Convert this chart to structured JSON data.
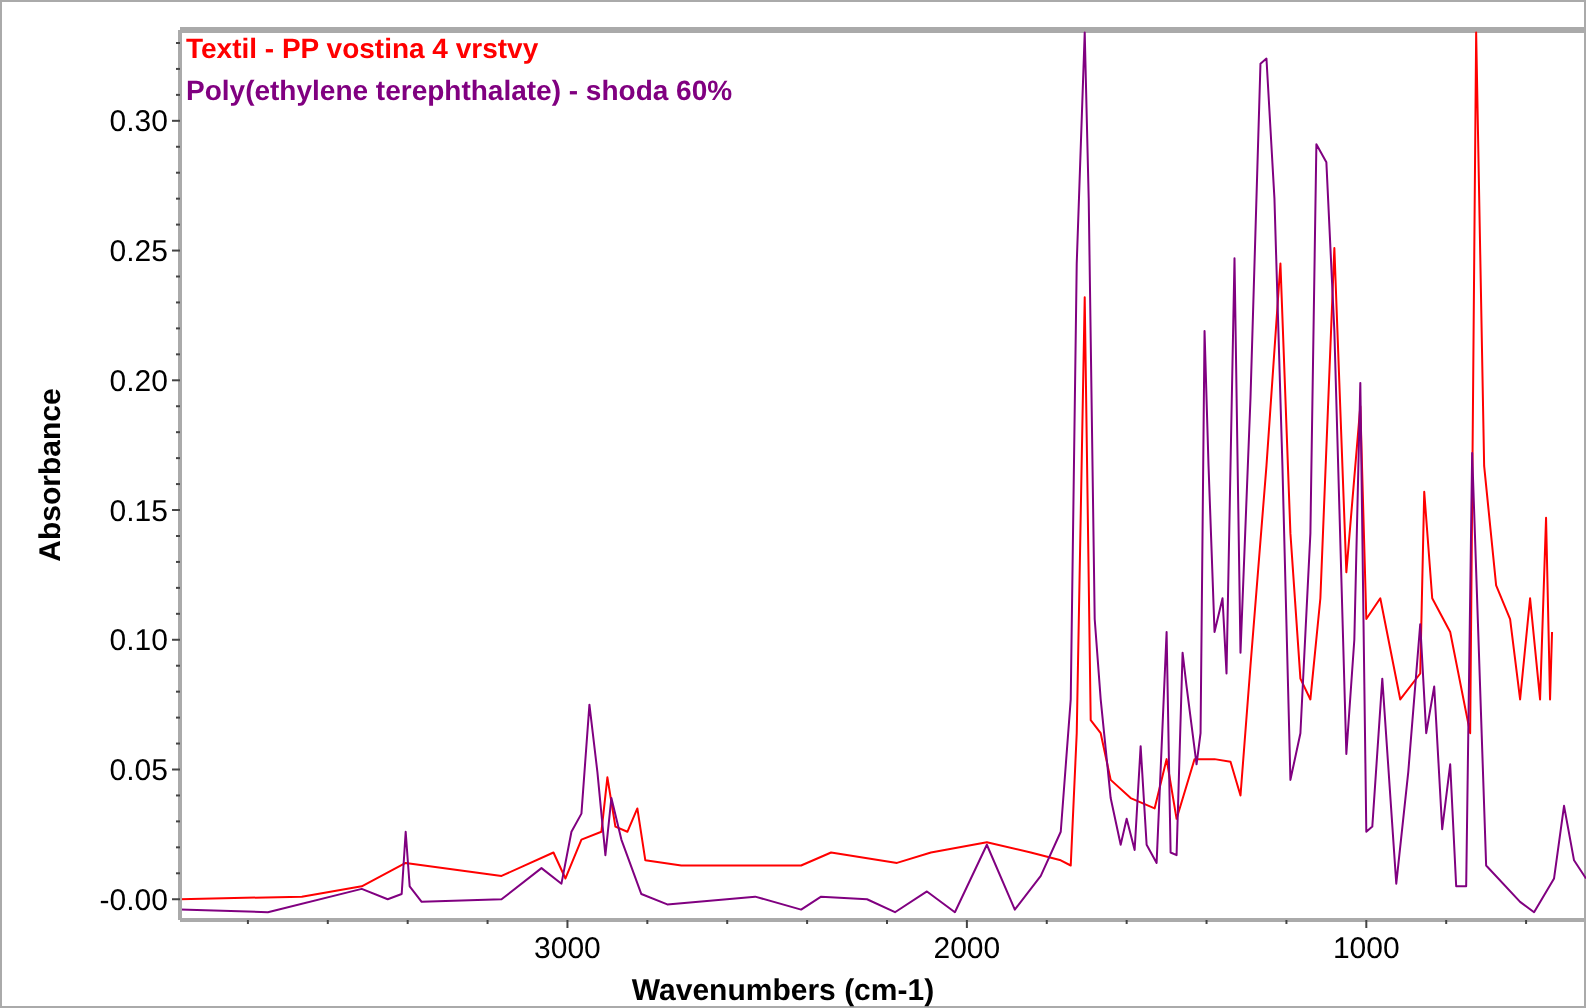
{
  "chart_data": {
    "type": "line",
    "xlabel": "Wavenumbers (cm-1)",
    "ylabel": "Absorbance",
    "xlim": [
      3970,
      450
    ],
    "ylim": [
      -0.008,
      0.335
    ],
    "xticks": [
      {
        "value": 3800,
        "label": null
      },
      {
        "value": 3600,
        "label": null
      },
      {
        "value": 3400,
        "label": null
      },
      {
        "value": 3200,
        "label": null
      },
      3000,
      {
        "value": 2800,
        "label": null
      },
      {
        "value": 2600,
        "label": null
      },
      {
        "value": 2400,
        "label": null
      },
      {
        "value": 2200,
        "label": null
      },
      2000,
      {
        "value": 1800,
        "label": null
      },
      {
        "value": 1600,
        "label": null
      },
      {
        "value": 1400,
        "label": null
      },
      {
        "value": 1200,
        "label": null
      },
      1000,
      {
        "value": 800,
        "label": null
      },
      {
        "value": 600,
        "label": null
      }
    ],
    "yticks": [
      {
        "value": 0,
        "label": "-0.00"
      },
      {
        "value": 0.01,
        "label": null
      },
      {
        "value": 0.02,
        "label": null
      },
      {
        "value": 0.03,
        "label": null
      },
      {
        "value": 0.04,
        "label": null
      },
      {
        "value": 0.05,
        "label": "0.05"
      },
      {
        "value": 0.06,
        "label": null
      },
      {
        "value": 0.07,
        "label": null
      },
      {
        "value": 0.08,
        "label": null
      },
      {
        "value": 0.09,
        "label": null
      },
      {
        "value": 0.1,
        "label": "0.10"
      },
      {
        "value": 0.11,
        "label": null
      },
      {
        "value": 0.12,
        "label": null
      },
      {
        "value": 0.13,
        "label": null
      },
      {
        "value": 0.14,
        "label": null
      },
      {
        "value": 0.15,
        "label": "0.15"
      },
      {
        "value": 0.16,
        "label": null
      },
      {
        "value": 0.17,
        "label": null
      },
      {
        "value": 0.18,
        "label": null
      },
      {
        "value": 0.19,
        "label": null
      },
      {
        "value": 0.2,
        "label": "0.20"
      },
      {
        "value": 0.21,
        "label": null
      },
      {
        "value": 0.22,
        "label": null
      },
      {
        "value": 0.23,
        "label": null
      },
      {
        "value": 0.24,
        "label": null
      },
      {
        "value": 0.25,
        "label": "0.25"
      },
      {
        "value": 0.26,
        "label": null
      },
      {
        "value": 0.27,
        "label": null
      },
      {
        "value": 0.28,
        "label": null
      },
      {
        "value": 0.29,
        "label": null
      },
      {
        "value": 0.3,
        "label": "0.30"
      },
      {
        "value": 0.31,
        "label": null
      },
      {
        "value": 0.32,
        "label": null
      },
      {
        "value": 0.33,
        "label": null
      }
    ],
    "grid": false,
    "legend": "top left",
    "marker": "none",
    "line_style": "solid",
    "series": [
      {
        "name": "Textil - PP vostina 4 vrstvy",
        "color": "#ff0000",
        "x": [
          3970,
          3665,
          3515,
          3405,
          3165,
          3035,
          3005,
          2965,
          2915,
          2900,
          2880,
          2850,
          2825,
          2805,
          2715,
          2415,
          2340,
          2175,
          2090,
          1950,
          1840,
          1765,
          1740,
          1725,
          1705,
          1690,
          1665,
          1640,
          1590,
          1530,
          1500,
          1475,
          1430,
          1380,
          1340,
          1315,
          1290,
          1250,
          1215,
          1190,
          1165,
          1140,
          1115,
          1080,
          1050,
          1015,
          1000,
          965,
          915,
          865,
          855,
          835,
          790,
          740,
          725,
          705,
          675,
          640,
          615,
          590,
          565,
          550,
          540,
          535
        ],
        "values": [
          0.0,
          0.001,
          0.005,
          0.014,
          0.009,
          0.018,
          0.008,
          0.023,
          0.026,
          0.047,
          0.028,
          0.026,
          0.035,
          0.015,
          0.013,
          0.013,
          0.018,
          0.014,
          0.018,
          0.022,
          0.018,
          0.015,
          0.013,
          0.064,
          0.232,
          0.069,
          0.064,
          0.046,
          0.039,
          0.035,
          0.054,
          0.031,
          0.054,
          0.054,
          0.053,
          0.04,
          0.09,
          0.167,
          0.245,
          0.141,
          0.085,
          0.077,
          0.116,
          0.251,
          0.126,
          0.19,
          0.108,
          0.116,
          0.077,
          0.087,
          0.157,
          0.116,
          0.103,
          0.064,
          0.334,
          0.167,
          0.121,
          0.108,
          0.077,
          0.116,
          0.077,
          0.147,
          0.077,
          0.103
        ]
      },
      {
        "name": "Poly(ethylene terephthalate) - shoda 60%",
        "color": "#800080",
        "x": [
          3970,
          3750,
          3515,
          3450,
          3415,
          3405,
          3395,
          3365,
          3165,
          3065,
          3015,
          2990,
          2965,
          2945,
          2925,
          2905,
          2890,
          2865,
          2815,
          2750,
          2530,
          2415,
          2365,
          2250,
          2180,
          2100,
          2030,
          1950,
          1880,
          1815,
          1765,
          1740,
          1725,
          1705,
          1695,
          1680,
          1665,
          1640,
          1615,
          1600,
          1580,
          1565,
          1550,
          1525,
          1500,
          1490,
          1475,
          1460,
          1450,
          1425,
          1415,
          1405,
          1395,
          1380,
          1360,
          1350,
          1330,
          1315,
          1290,
          1265,
          1250,
          1230,
          1210,
          1190,
          1165,
          1140,
          1125,
          1100,
          1080,
          1050,
          1030,
          1015,
          1000,
          985,
          960,
          925,
          895,
          865,
          850,
          830,
          810,
          790,
          775,
          750,
          735,
          700,
          615,
          580,
          530,
          505,
          480,
          450
        ],
        "values": [
          -0.004,
          -0.005,
          0.004,
          0.0,
          0.002,
          0.026,
          0.005,
          -0.001,
          0.0,
          0.012,
          0.006,
          0.026,
          0.033,
          0.075,
          0.049,
          0.017,
          0.039,
          0.023,
          0.002,
          -0.002,
          0.001,
          -0.004,
          0.001,
          0.0,
          -0.005,
          0.003,
          -0.005,
          0.021,
          -0.004,
          0.009,
          0.026,
          0.077,
          0.245,
          0.334,
          0.27,
          0.108,
          0.077,
          0.039,
          0.021,
          0.031,
          0.019,
          0.059,
          0.021,
          0.014,
          0.103,
          0.018,
          0.017,
          0.095,
          0.082,
          0.052,
          0.064,
          0.219,
          0.167,
          0.103,
          0.116,
          0.087,
          0.247,
          0.095,
          0.193,
          0.322,
          0.324,
          0.27,
          0.167,
          0.046,
          0.064,
          0.141,
          0.291,
          0.284,
          0.219,
          0.056,
          0.1,
          0.199,
          0.026,
          0.028,
          0.085,
          0.006,
          0.049,
          0.106,
          0.064,
          0.082,
          0.027,
          0.052,
          0.005,
          0.005,
          0.172,
          0.013,
          -0.001,
          -0.005,
          0.008,
          0.036,
          0.015,
          0.008
        ]
      }
    ]
  }
}
